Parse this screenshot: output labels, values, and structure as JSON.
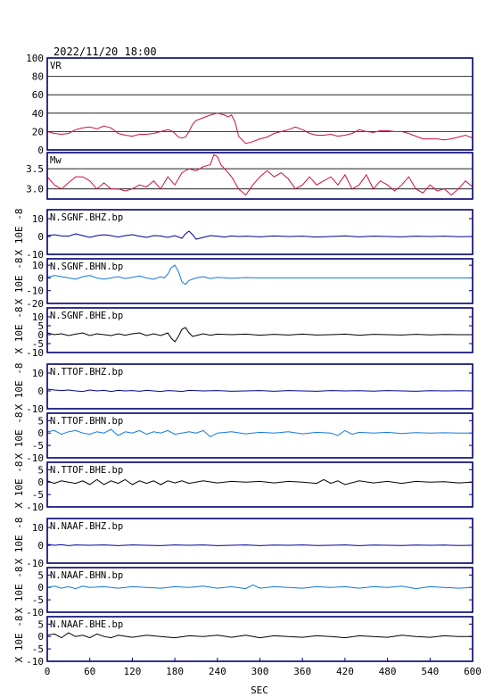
{
  "title": "2022/11/20 18:00",
  "xlabel": "SEC",
  "xticks": [
    "0",
    "60",
    "120",
    "180",
    "240",
    "300",
    "360",
    "420",
    "480",
    "540",
    "600"
  ],
  "colors": {
    "frame": "#000070",
    "red": "#cc1144",
    "blue_dark": "#000099",
    "blue_light": "#1177dd",
    "black": "#000000"
  },
  "chart_data": [
    {
      "type": "line",
      "label": "VR",
      "ylim": [
        0,
        100
      ],
      "yticks": [
        "0",
        "20",
        "40",
        "60",
        "80",
        "100"
      ],
      "grid": true,
      "x": [
        0,
        10,
        20,
        30,
        40,
        50,
        60,
        70,
        80,
        90,
        100,
        110,
        120,
        130,
        140,
        150,
        160,
        170,
        175,
        180,
        185,
        190,
        195,
        200,
        205,
        210,
        220,
        230,
        240,
        250,
        255,
        260,
        265,
        270,
        280,
        290,
        300,
        310,
        320,
        330,
        340,
        350,
        360,
        370,
        380,
        390,
        400,
        410,
        420,
        430,
        440,
        450,
        460,
        470,
        480,
        490,
        500,
        510,
        520,
        530,
        540,
        550,
        560,
        570,
        580,
        590,
        600
      ],
      "y": [
        20,
        18,
        17,
        18,
        22,
        24,
        25,
        23,
        26,
        24,
        18,
        16,
        15,
        17,
        17,
        18,
        20,
        22,
        21,
        18,
        14,
        13,
        14,
        20,
        28,
        32,
        35,
        38,
        40,
        38,
        36,
        38,
        30,
        15,
        7,
        9,
        12,
        14,
        18,
        20,
        22,
        25,
        22,
        18,
        16,
        16,
        17,
        15,
        16,
        18,
        22,
        20,
        19,
        21,
        21,
        20,
        20,
        18,
        15,
        12,
        12,
        12,
        11,
        12,
        14,
        16,
        13
      ],
      "color": "red"
    },
    {
      "type": "line",
      "label": "Mw",
      "ylim": [
        2.75,
        3.9
      ],
      "yticks": [
        "3.0",
        "3.5"
      ],
      "grid": true,
      "x": [
        0,
        10,
        20,
        30,
        40,
        50,
        60,
        70,
        80,
        90,
        100,
        110,
        120,
        130,
        140,
        150,
        160,
        170,
        180,
        190,
        200,
        210,
        220,
        230,
        235,
        240,
        245,
        250,
        260,
        270,
        280,
        290,
        300,
        310,
        320,
        330,
        340,
        350,
        360,
        370,
        380,
        390,
        400,
        410,
        420,
        430,
        440,
        450,
        460,
        470,
        480,
        490,
        500,
        510,
        520,
        530,
        540,
        550,
        560,
        570,
        580,
        590,
        600
      ],
      "y": [
        3.3,
        3.1,
        3.0,
        3.15,
        3.3,
        3.3,
        3.2,
        3.0,
        3.15,
        3.0,
        3.0,
        2.95,
        3.0,
        3.1,
        3.05,
        3.2,
        3.0,
        3.3,
        3.1,
        3.4,
        3.5,
        3.45,
        3.55,
        3.6,
        3.85,
        3.8,
        3.6,
        3.5,
        3.3,
        3.0,
        2.85,
        3.1,
        3.3,
        3.45,
        3.3,
        3.4,
        3.25,
        3.0,
        3.1,
        3.3,
        3.1,
        3.2,
        3.3,
        3.1,
        3.35,
        3.0,
        3.1,
        3.35,
        3.0,
        3.2,
        3.1,
        2.95,
        3.1,
        3.3,
        3.0,
        2.9,
        3.1,
        2.95,
        3.0,
        2.85,
        3.0,
        3.2,
        3.05
      ],
      "color": "red"
    },
    {
      "type": "line",
      "label": "N.SGNF.BHZ.bp",
      "ylim": [
        -10,
        15
      ],
      "yticks": [
        "-10",
        "0",
        "10"
      ],
      "axis_label": "X 10E -8",
      "color": "blue_dark",
      "x": [
        0,
        10,
        20,
        30,
        40,
        50,
        60,
        70,
        80,
        90,
        100,
        110,
        120,
        130,
        140,
        150,
        160,
        170,
        180,
        190,
        195,
        200,
        205,
        210,
        220,
        230,
        240,
        250,
        260,
        270,
        280,
        300,
        320,
        340,
        360,
        380,
        400,
        420,
        440,
        460,
        480,
        500,
        520,
        540,
        560,
        580,
        600
      ],
      "y": [
        0.5,
        1,
        0.3,
        0.2,
        1.5,
        0.5,
        -0.5,
        0.5,
        1,
        0.5,
        -0.3,
        0.5,
        1,
        0.2,
        -0.5,
        0.5,
        0.3,
        -0.5,
        0.5,
        -1,
        1.5,
        3,
        1,
        -1.5,
        -0.5,
        0.5,
        0.2,
        -0.3,
        0.3,
        0,
        0.2,
        -0.2,
        0.3,
        0,
        0.2,
        -0.3,
        0,
        0.3,
        -0.2,
        0.2,
        0,
        -0.2,
        0.2,
        0,
        0.2,
        -0.1,
        0
      ]
    },
    {
      "type": "line",
      "label": "N.SGNF.BHN.bp",
      "ylim": [
        -20,
        15
      ],
      "yticks": [
        "-20",
        "-10",
        "0",
        "10"
      ],
      "axis_label": "X 10E -8",
      "color": "blue_light",
      "x": [
        0,
        10,
        20,
        30,
        40,
        50,
        60,
        70,
        80,
        90,
        100,
        110,
        120,
        130,
        140,
        150,
        160,
        165,
        170,
        175,
        180,
        185,
        190,
        195,
        200,
        210,
        220,
        230,
        240,
        260,
        280,
        300,
        340,
        380,
        420,
        460,
        500,
        540,
        580,
        600
      ],
      "y": [
        0.5,
        2,
        1,
        0,
        -1,
        1,
        2,
        0,
        -1,
        0,
        1,
        -0.5,
        0.5,
        1.5,
        0,
        -1,
        1,
        0,
        3,
        8,
        10,
        5,
        -3,
        -5,
        -2,
        0,
        1,
        -0.5,
        0.5,
        -0.3,
        0.3,
        0,
        0,
        0,
        0,
        0,
        0,
        0,
        0,
        0
      ]
    },
    {
      "type": "line",
      "label": "N.SGNF.BHE.bp",
      "ylim": [
        -10,
        15
      ],
      "yticks": [
        "-10",
        "-5",
        "0",
        "5",
        "10"
      ],
      "axis_label": "X 10E -8",
      "color": "black",
      "x": [
        0,
        10,
        20,
        30,
        40,
        50,
        60,
        70,
        80,
        90,
        100,
        110,
        120,
        130,
        140,
        150,
        160,
        170,
        175,
        180,
        185,
        190,
        195,
        200,
        205,
        210,
        220,
        230,
        240,
        260,
        280,
        300,
        320,
        340,
        360,
        380,
        400,
        420,
        440,
        460,
        480,
        500,
        520,
        540,
        560,
        580,
        600
      ],
      "y": [
        1,
        0,
        0.5,
        -0.5,
        0.3,
        1,
        -0.5,
        0.5,
        0,
        -0.5,
        0.5,
        -0.3,
        0.5,
        1,
        -0.5,
        0.5,
        -0.5,
        1,
        -2,
        -4,
        -1,
        3,
        4,
        1,
        -1,
        -0.5,
        0.5,
        -0.3,
        0.3,
        0,
        0.3,
        -0.3,
        0.2,
        -0.2,
        0.3,
        -0.2,
        0,
        0.3,
        -0.3,
        0.2,
        0,
        -0.2,
        0.2,
        -0.1,
        0.1,
        0,
        0
      ]
    },
    {
      "type": "line",
      "label": "N.TTOF.BHZ.bp",
      "ylim": [
        -10,
        15
      ],
      "yticks": [
        "-10",
        "0",
        "10"
      ],
      "axis_label": "X 10E -8",
      "color": "blue_dark",
      "x": [
        0,
        10,
        20,
        30,
        40,
        50,
        60,
        70,
        80,
        90,
        100,
        110,
        120,
        130,
        140,
        150,
        160,
        170,
        180,
        190,
        200,
        220,
        240,
        260,
        280,
        300,
        320,
        340,
        360,
        380,
        400,
        420,
        440,
        460,
        480,
        500,
        520,
        540,
        560,
        580,
        600
      ],
      "y": [
        1,
        0.5,
        0.2,
        0.5,
        0,
        -0.3,
        0.5,
        0,
        0.3,
        -0.3,
        0.3,
        0,
        0.2,
        -0.2,
        0.3,
        0,
        -0.3,
        0.2,
        0,
        -0.3,
        0.3,
        0,
        0.2,
        -0.2,
        0,
        0.2,
        -0.2,
        0.2,
        0,
        -0.2,
        0.2,
        0,
        0.1,
        -0.1,
        0.2,
        0,
        -0.2,
        0.1,
        0,
        0.1,
        0
      ]
    },
    {
      "type": "line",
      "label": "N.TTOF.BHN.bp",
      "ylim": [
        -10,
        8
      ],
      "yticks": [
        "-10",
        "-5",
        "0",
        "5"
      ],
      "axis_label": "X 10E -8",
      "color": "blue_light",
      "x": [
        0,
        10,
        20,
        30,
        40,
        50,
        60,
        70,
        80,
        90,
        100,
        110,
        120,
        130,
        140,
        150,
        160,
        170,
        180,
        190,
        200,
        210,
        220,
        230,
        240,
        260,
        280,
        300,
        320,
        340,
        360,
        380,
        400,
        410,
        420,
        430,
        440,
        460,
        480,
        500,
        520,
        540,
        560,
        580,
        600
      ],
      "y": [
        0.5,
        1,
        -0.5,
        0.5,
        1,
        0,
        -0.5,
        0.5,
        0,
        1.5,
        -1,
        0.5,
        0,
        1,
        -0.5,
        0.5,
        0,
        1,
        -0.5,
        0,
        0.5,
        0,
        1,
        -1.5,
        0,
        0.5,
        -0.3,
        0.3,
        0,
        0.5,
        -0.3,
        0.3,
        0,
        -1,
        1,
        -0.5,
        0.3,
        0,
        0.3,
        -0.2,
        0.2,
        0,
        0.1,
        0,
        0
      ]
    },
    {
      "type": "line",
      "label": "N.TTOF.BHE.bp",
      "ylim": [
        -10,
        8
      ],
      "yticks": [
        "-10",
        "-5",
        "0",
        "5"
      ],
      "axis_label": "X 10E -8",
      "color": "black",
      "x": [
        0,
        10,
        20,
        30,
        40,
        50,
        60,
        70,
        80,
        90,
        100,
        110,
        120,
        130,
        140,
        150,
        160,
        170,
        180,
        190,
        200,
        220,
        240,
        260,
        280,
        300,
        320,
        340,
        360,
        380,
        390,
        400,
        410,
        420,
        440,
        460,
        480,
        500,
        520,
        540,
        560,
        580,
        600
      ],
      "y": [
        0.5,
        -0.5,
        0.5,
        0,
        -0.5,
        0.5,
        -1,
        1,
        -1,
        0.5,
        -0.5,
        1,
        -1,
        0.5,
        -0.5,
        0.5,
        -1,
        0.5,
        -0.3,
        0.5,
        -0.5,
        0.5,
        -0.3,
        0.3,
        0,
        0.3,
        -0.3,
        0.3,
        0,
        -0.5,
        1,
        -0.5,
        0.5,
        -1,
        0.5,
        -0.3,
        0.3,
        -0.5,
        0.3,
        0,
        0.2,
        -0.3,
        0
      ]
    },
    {
      "type": "line",
      "label": "N.NAAF.BHZ.bp",
      "ylim": [
        -10,
        15
      ],
      "yticks": [
        "-10",
        "0",
        "10"
      ],
      "axis_label": "X 10E -8",
      "color": "blue_dark",
      "x": [
        0,
        10,
        20,
        30,
        40,
        60,
        80,
        100,
        120,
        140,
        160,
        180,
        200,
        220,
        240,
        260,
        280,
        300,
        320,
        340,
        360,
        380,
        400,
        420,
        440,
        460,
        480,
        500,
        520,
        540,
        560,
        580,
        600
      ],
      "y": [
        0.5,
        0,
        0.3,
        -0.2,
        0.2,
        0,
        0.2,
        -0.2,
        0.2,
        0,
        -0.2,
        0.2,
        0,
        0.2,
        -0.2,
        0,
        0.2,
        -0.2,
        0.1,
        0,
        0.2,
        -0.1,
        0,
        0.2,
        -0.2,
        0.1,
        0,
        -0.1,
        0.1,
        0,
        0.1,
        -0.1,
        0
      ]
    },
    {
      "type": "line",
      "label": "N.NAAF.BHN.bp",
      "ylim": [
        -10,
        8
      ],
      "yticks": [
        "-10",
        "-5",
        "0",
        "5"
      ],
      "axis_label": "X 10E -8",
      "color": "blue_light",
      "x": [
        0,
        10,
        20,
        30,
        40,
        50,
        60,
        80,
        100,
        120,
        140,
        160,
        180,
        200,
        220,
        240,
        260,
        280,
        290,
        300,
        320,
        340,
        360,
        380,
        400,
        420,
        440,
        460,
        480,
        500,
        520,
        540,
        560,
        580,
        600
      ],
      "y": [
        0,
        0.5,
        -0.3,
        0.3,
        -0.5,
        0.5,
        0,
        0.3,
        -0.3,
        0.3,
        0,
        -0.3,
        0.3,
        0,
        0.5,
        -0.3,
        0.3,
        -0.5,
        1,
        -0.3,
        0.3,
        0,
        -0.3,
        0.3,
        0,
        0.3,
        -0.3,
        0.3,
        0,
        0.5,
        -0.5,
        0.3,
        0,
        -0.3,
        0
      ]
    },
    {
      "type": "line",
      "label": "N.NAAF.BHE.bp",
      "ylim": [
        -10,
        8
      ],
      "yticks": [
        "-10",
        "-5",
        "0",
        "5"
      ],
      "axis_label": "X 10E -8",
      "color": "black",
      "x": [
        0,
        10,
        20,
        30,
        40,
        50,
        60,
        70,
        80,
        90,
        100,
        120,
        140,
        160,
        180,
        200,
        220,
        240,
        260,
        280,
        300,
        320,
        340,
        360,
        380,
        400,
        420,
        440,
        460,
        480,
        500,
        520,
        540,
        560,
        580,
        600
      ],
      "y": [
        0.5,
        1,
        -0.5,
        1.5,
        0,
        0.5,
        -0.5,
        1,
        0,
        -0.5,
        0.5,
        -0.3,
        0.5,
        0,
        -0.5,
        0.3,
        0,
        0.5,
        -0.3,
        0.5,
        -0.5,
        0.3,
        0,
        -0.3,
        0.3,
        0,
        -0.5,
        0.3,
        0,
        -0.3,
        0.5,
        0,
        -0.3,
        0.3,
        0,
        0
      ]
    }
  ]
}
